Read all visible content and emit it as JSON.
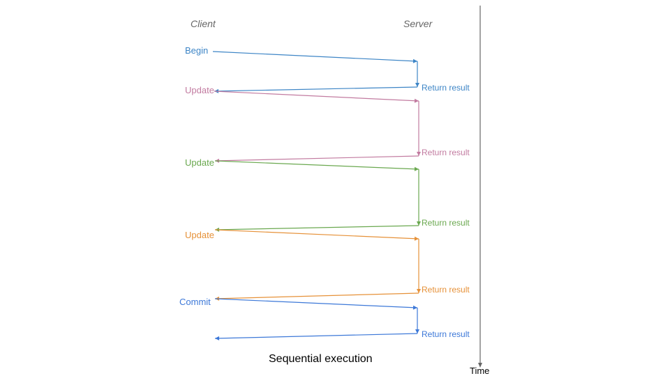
{
  "headers": {
    "client": "Client",
    "server": "Server"
  },
  "steps": [
    {
      "label": "Begin",
      "result": "Return result",
      "color": "#3d85c6"
    },
    {
      "label": "Update",
      "result": "Return result",
      "color": "#c27ba0"
    },
    {
      "label": "Update",
      "result": "Return result",
      "color": "#6aa84f"
    },
    {
      "label": "Update",
      "result": "Return result",
      "color": "#e69138"
    },
    {
      "label": "Commit",
      "result": "Return result",
      "color": "#3c78d8"
    }
  ],
  "caption": "Sequential execution",
  "time_axis_label": "Time",
  "axis_color": "#666666"
}
